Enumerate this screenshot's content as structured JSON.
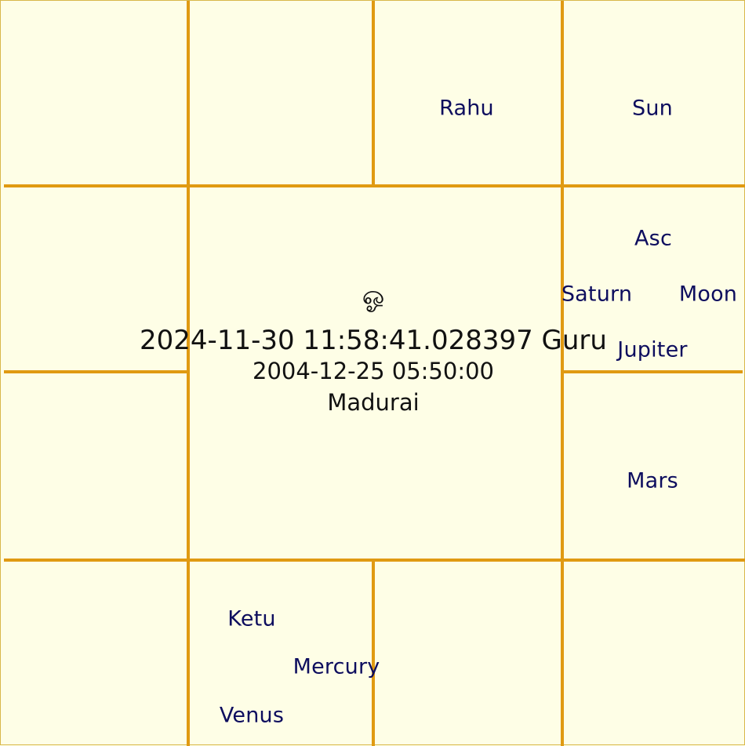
{
  "center": {
    "symbol": "ஓ",
    "timestamp": "2024-11-30 11:58:41.028397 Guru",
    "birth": "2004-12-25 05:50:00",
    "place": "Madurai"
  },
  "houses": {
    "top_3": [
      "Rahu"
    ],
    "top_4": [
      "Sun"
    ],
    "right_1": [
      "Asc",
      "Saturn",
      "Moon",
      "Jupiter"
    ],
    "right_2": [
      "Mars"
    ],
    "bottom_2": [
      "Ketu",
      "Mercury",
      "Venus"
    ]
  },
  "colors": {
    "background": "#fefee6",
    "grid": "#e09a12",
    "planet_text": "#0d0d5e",
    "center_text": "#111111"
  }
}
